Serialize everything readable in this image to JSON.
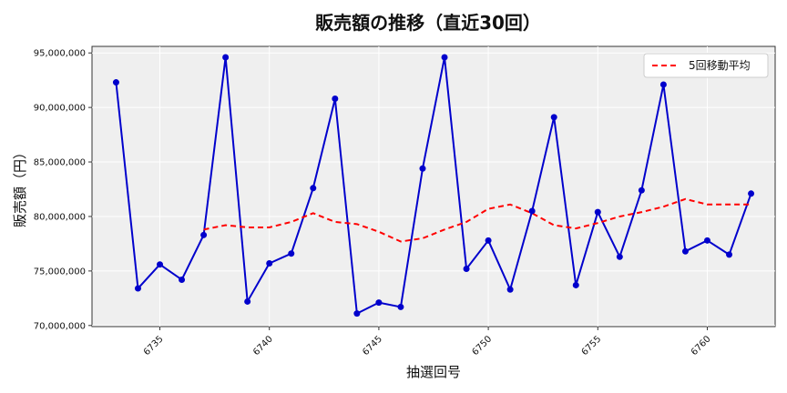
{
  "chart_data": {
    "type": "line",
    "title": "販売額の推移（直近30回）",
    "xlabel": "抽選回号",
    "ylabel": "販売額（円）",
    "xlim": [
      6731.9,
      6763.1
    ],
    "ylim": [
      69900000,
      95600000
    ],
    "x_ticks": [
      6735,
      6740,
      6745,
      6750,
      6755,
      6760
    ],
    "y_ticks": [
      70000000,
      75000000,
      80000000,
      85000000,
      90000000,
      95000000
    ],
    "y_tick_labels": [
      "70,000,000",
      "75,000,000",
      "80,000,000",
      "85,000,000",
      "90,000,000",
      "95,000,000"
    ],
    "grid": true,
    "legend_position": "top-right",
    "x": [
      6733,
      6734,
      6735,
      6736,
      6737,
      6738,
      6739,
      6740,
      6741,
      6742,
      6743,
      6744,
      6745,
      6746,
      6747,
      6748,
      6749,
      6750,
      6751,
      6752,
      6753,
      6754,
      6755,
      6756,
      6757,
      6758,
      6759,
      6760,
      6761,
      6762
    ],
    "series": [
      {
        "name": "",
        "color": "#0000cc",
        "style": "solid-with-markers",
        "values": [
          92300000,
          73400000,
          75600000,
          74200000,
          78300000,
          94600000,
          72200000,
          75700000,
          76600000,
          82600000,
          90800000,
          71100000,
          72100000,
          71700000,
          84400000,
          94600000,
          75200000,
          77800000,
          73300000,
          80500000,
          89100000,
          73700000,
          80400000,
          76300000,
          82400000,
          92100000,
          76800000,
          77800000,
          76500000,
          82100000
        ]
      },
      {
        "name": "5回移動平均",
        "color": "#ff0000",
        "style": "dashed",
        "values": [
          null,
          null,
          null,
          null,
          78800000,
          79200000,
          79000000,
          79000000,
          79500000,
          80300000,
          79500000,
          79300000,
          78600000,
          77700000,
          78000000,
          78800000,
          79500000,
          80700000,
          81100000,
          80300000,
          79200000,
          78900000,
          79400000,
          80000000,
          80400000,
          80900000,
          81600000,
          81100000,
          81100000,
          81100000
        ]
      }
    ]
  }
}
